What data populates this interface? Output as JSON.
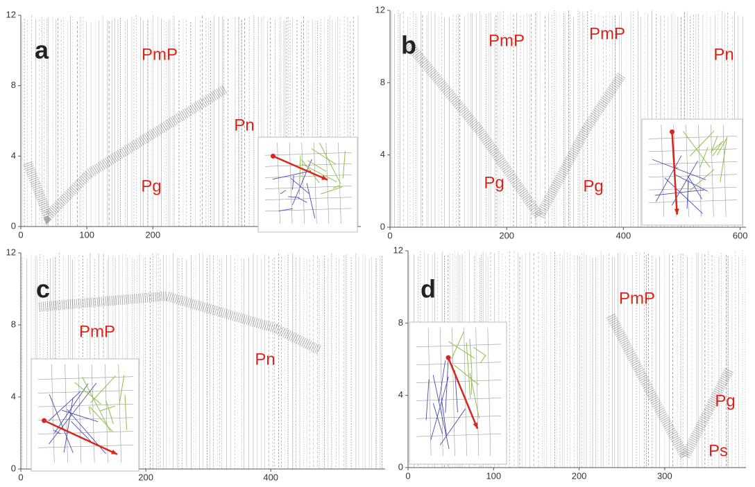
{
  "panels": [
    {
      "label": "a",
      "xlim": [
        0,
        515
      ],
      "ylim": [
        0,
        12
      ],
      "xticks": [
        0,
        100,
        200
      ],
      "yticks": [
        0,
        4,
        8,
        12
      ],
      "phases": [
        "PmP",
        "Pn",
        "Pg"
      ]
    },
    {
      "label": "b",
      "xlim": [
        0,
        610
      ],
      "ylim": [
        0,
        12
      ],
      "xticks": [
        0,
        200,
        400,
        600
      ],
      "yticks": [
        0,
        4,
        8,
        12
      ],
      "phases": [
        "PmP",
        "PmP",
        "Pn",
        "Pg",
        "Pg"
      ]
    },
    {
      "label": "c",
      "xlim": [
        0,
        583
      ],
      "ylim": [
        0,
        12
      ],
      "xticks": [
        0,
        200,
        400
      ],
      "yticks": [
        0,
        4,
        8,
        12
      ],
      "phases": [
        "PmP",
        "Pn"
      ]
    },
    {
      "label": "d",
      "xlim": [
        0,
        395
      ],
      "ylim": [
        0,
        12
      ],
      "xticks": [
        0,
        100,
        200,
        300
      ],
      "yticks": [
        0,
        4,
        8,
        12
      ],
      "phases": [
        "PmP",
        "Pg",
        "Ps"
      ]
    }
  ]
}
